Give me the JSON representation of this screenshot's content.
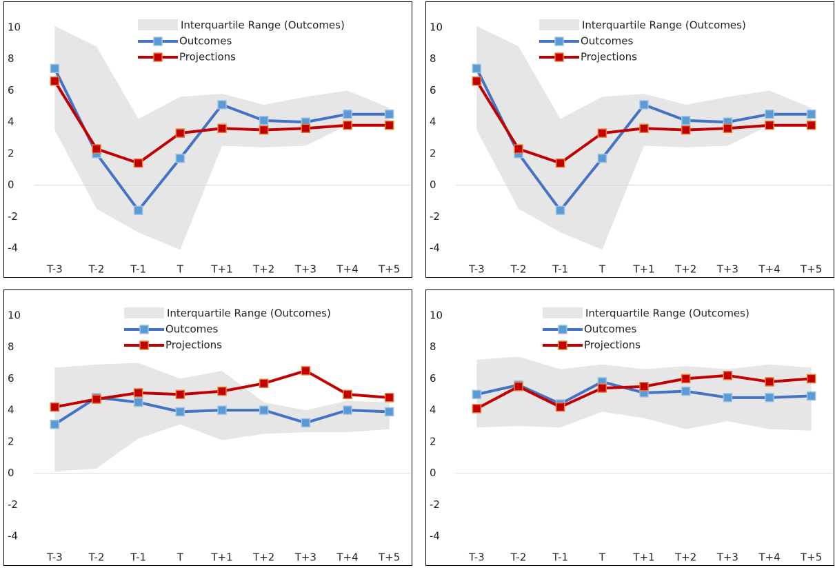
{
  "chart_data": [
    {
      "type": "line",
      "categories": [
        "T-3",
        "T-2",
        "T-1",
        "T",
        "T+1",
        "T+2",
        "T+3",
        "T+4",
        "T+5"
      ],
      "ylim": [
        -5,
        11
      ],
      "yticks": [
        -4,
        -2,
        0,
        2,
        4,
        6,
        8,
        10
      ],
      "band": {
        "name": "Interquartile Range (Outcomes)",
        "color": "#e6e6e6",
        "high": [
          10.1,
          8.8,
          4.2,
          5.6,
          5.8,
          5.1,
          5.6,
          6.0,
          4.9
        ],
        "low": [
          3.5,
          -1.5,
          -3.0,
          -4.1,
          2.5,
          2.4,
          2.5,
          3.8,
          3.8
        ]
      },
      "series": [
        {
          "name": "Outcomes",
          "color": "#4472c4",
          "marker_color": "#5b9bd5",
          "values": [
            7.4,
            2.0,
            -1.6,
            1.7,
            5.1,
            4.1,
            4.0,
            4.5,
            4.5
          ]
        },
        {
          "name": "Projections",
          "color": "#c00000",
          "marker_color": "#ed7d31",
          "values": [
            6.6,
            2.3,
            1.4,
            3.3,
            3.6,
            3.5,
            3.6,
            3.8,
            3.8
          ]
        }
      ]
    },
    {
      "type": "line",
      "categories": [
        "T-3",
        "T-2",
        "T-1",
        "T",
        "T+1",
        "T+2",
        "T+3",
        "T+4",
        "T+5"
      ],
      "ylim": [
        -5,
        11
      ],
      "yticks": [
        -4,
        -2,
        0,
        2,
        4,
        6,
        8,
        10
      ],
      "band": {
        "name": "Interquartile Range (Outcomes)",
        "color": "#e6e6e6",
        "high": [
          10.1,
          8.8,
          4.2,
          5.6,
          5.8,
          5.1,
          5.6,
          6.0,
          4.9
        ],
        "low": [
          3.5,
          -1.5,
          -3.0,
          -4.1,
          2.5,
          2.4,
          2.5,
          3.8,
          3.8
        ]
      },
      "series": [
        {
          "name": "Outcomes",
          "color": "#4472c4",
          "marker_color": "#5b9bd5",
          "values": [
            7.4,
            2.0,
            -1.6,
            1.7,
            5.1,
            4.1,
            4.0,
            4.5,
            4.5
          ]
        },
        {
          "name": "Projections",
          "color": "#c00000",
          "marker_color": "#ed7d31",
          "values": [
            6.6,
            2.3,
            1.4,
            3.3,
            3.6,
            3.5,
            3.6,
            3.8,
            3.8
          ]
        }
      ]
    },
    {
      "type": "line",
      "categories": [
        "T-3",
        "T-2",
        "T-1",
        "T",
        "T+1",
        "T+2",
        "T+3",
        "T+4",
        "T+5"
      ],
      "ylim": [
        -5,
        11
      ],
      "yticks": [
        -4,
        -2,
        0,
        2,
        4,
        6,
        8,
        10
      ],
      "band": {
        "name": "Interquartile Range (Outcomes)",
        "color": "#e6e6e6",
        "high": [
          6.7,
          6.9,
          7.0,
          6.0,
          6.5,
          4.5,
          4.0,
          4.6,
          4.5
        ],
        "low": [
          0.1,
          0.3,
          2.2,
          3.1,
          2.1,
          2.5,
          2.6,
          2.6,
          2.8
        ]
      },
      "series": [
        {
          "name": "Outcomes",
          "color": "#4472c4",
          "marker_color": "#5b9bd5",
          "values": [
            3.1,
            4.8,
            4.5,
            3.9,
            4.0,
            4.0,
            3.2,
            4.0,
            3.9
          ]
        },
        {
          "name": "Projections",
          "color": "#c00000",
          "marker_color": "#ed7d31",
          "values": [
            4.2,
            4.7,
            5.1,
            5.0,
            5.2,
            5.7,
            6.5,
            5.0,
            4.8
          ]
        }
      ]
    },
    {
      "type": "line",
      "categories": [
        "T-3",
        "T-2",
        "T-1",
        "T",
        "T+1",
        "T+2",
        "T+3",
        "T+4",
        "T+5"
      ],
      "ylim": [
        -5,
        11
      ],
      "yticks": [
        -4,
        -2,
        0,
        2,
        4,
        6,
        8,
        10
      ],
      "band": {
        "name": "Interquartile Range (Outcomes)",
        "color": "#e6e6e6",
        "high": [
          7.2,
          7.4,
          6.6,
          6.9,
          6.6,
          6.8,
          6.6,
          6.9,
          6.7
        ],
        "low": [
          2.9,
          3.0,
          2.9,
          3.9,
          3.5,
          2.8,
          3.3,
          2.8,
          2.7
        ]
      },
      "series": [
        {
          "name": "Outcomes",
          "color": "#4472c4",
          "marker_color": "#5b9bd5",
          "values": [
            5.0,
            5.6,
            4.4,
            5.8,
            5.1,
            5.2,
            4.8,
            4.8,
            4.9
          ]
        },
        {
          "name": "Projections",
          "color": "#c00000",
          "marker_color": "#ed7d31",
          "values": [
            4.1,
            5.5,
            4.2,
            5.4,
            5.5,
            6.0,
            6.2,
            5.8,
            6.0
          ]
        }
      ]
    }
  ]
}
